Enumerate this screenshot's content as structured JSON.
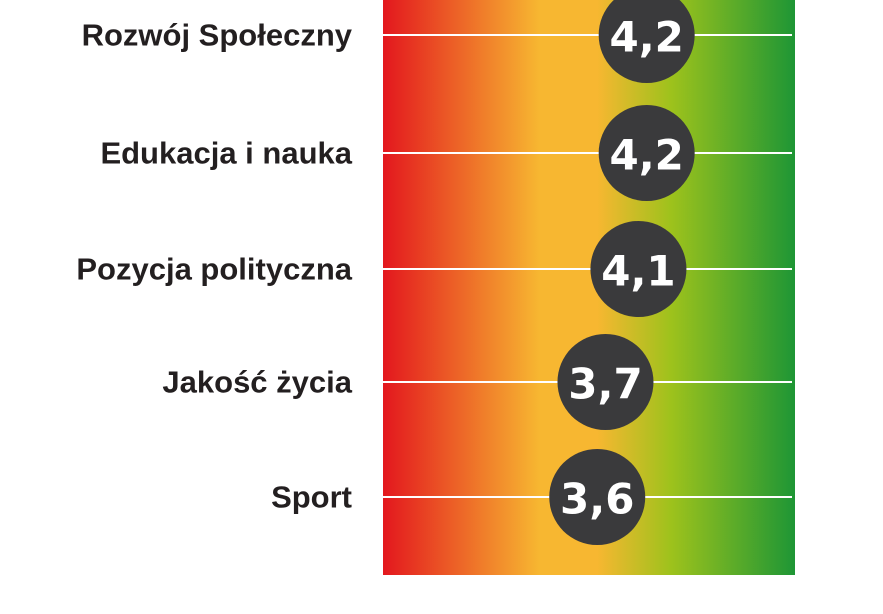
{
  "chart_data": {
    "type": "scatter",
    "categories": [
      "Rozwój Społeczny",
      "Edukacja i nauka",
      "Pozycja polityczna",
      "Jakość życia",
      "Sport"
    ],
    "values": [
      4.2,
      4.2,
      4.1,
      3.7,
      3.6
    ],
    "value_labels": [
      "4,2",
      "4,2",
      "4,1",
      "3,7",
      "3,6"
    ],
    "title": "",
    "xlabel": "",
    "ylabel": "",
    "xlim": [
      1,
      6
    ],
    "grid": true,
    "colors": {
      "scale_low": "#e3171e",
      "scale_mid": "#f7b731",
      "scale_high": "#1e9635",
      "marker": "#3a3a3c",
      "marker_text": "#ffffff",
      "label_text": "#231f20",
      "gridline": "#ffffff"
    }
  }
}
